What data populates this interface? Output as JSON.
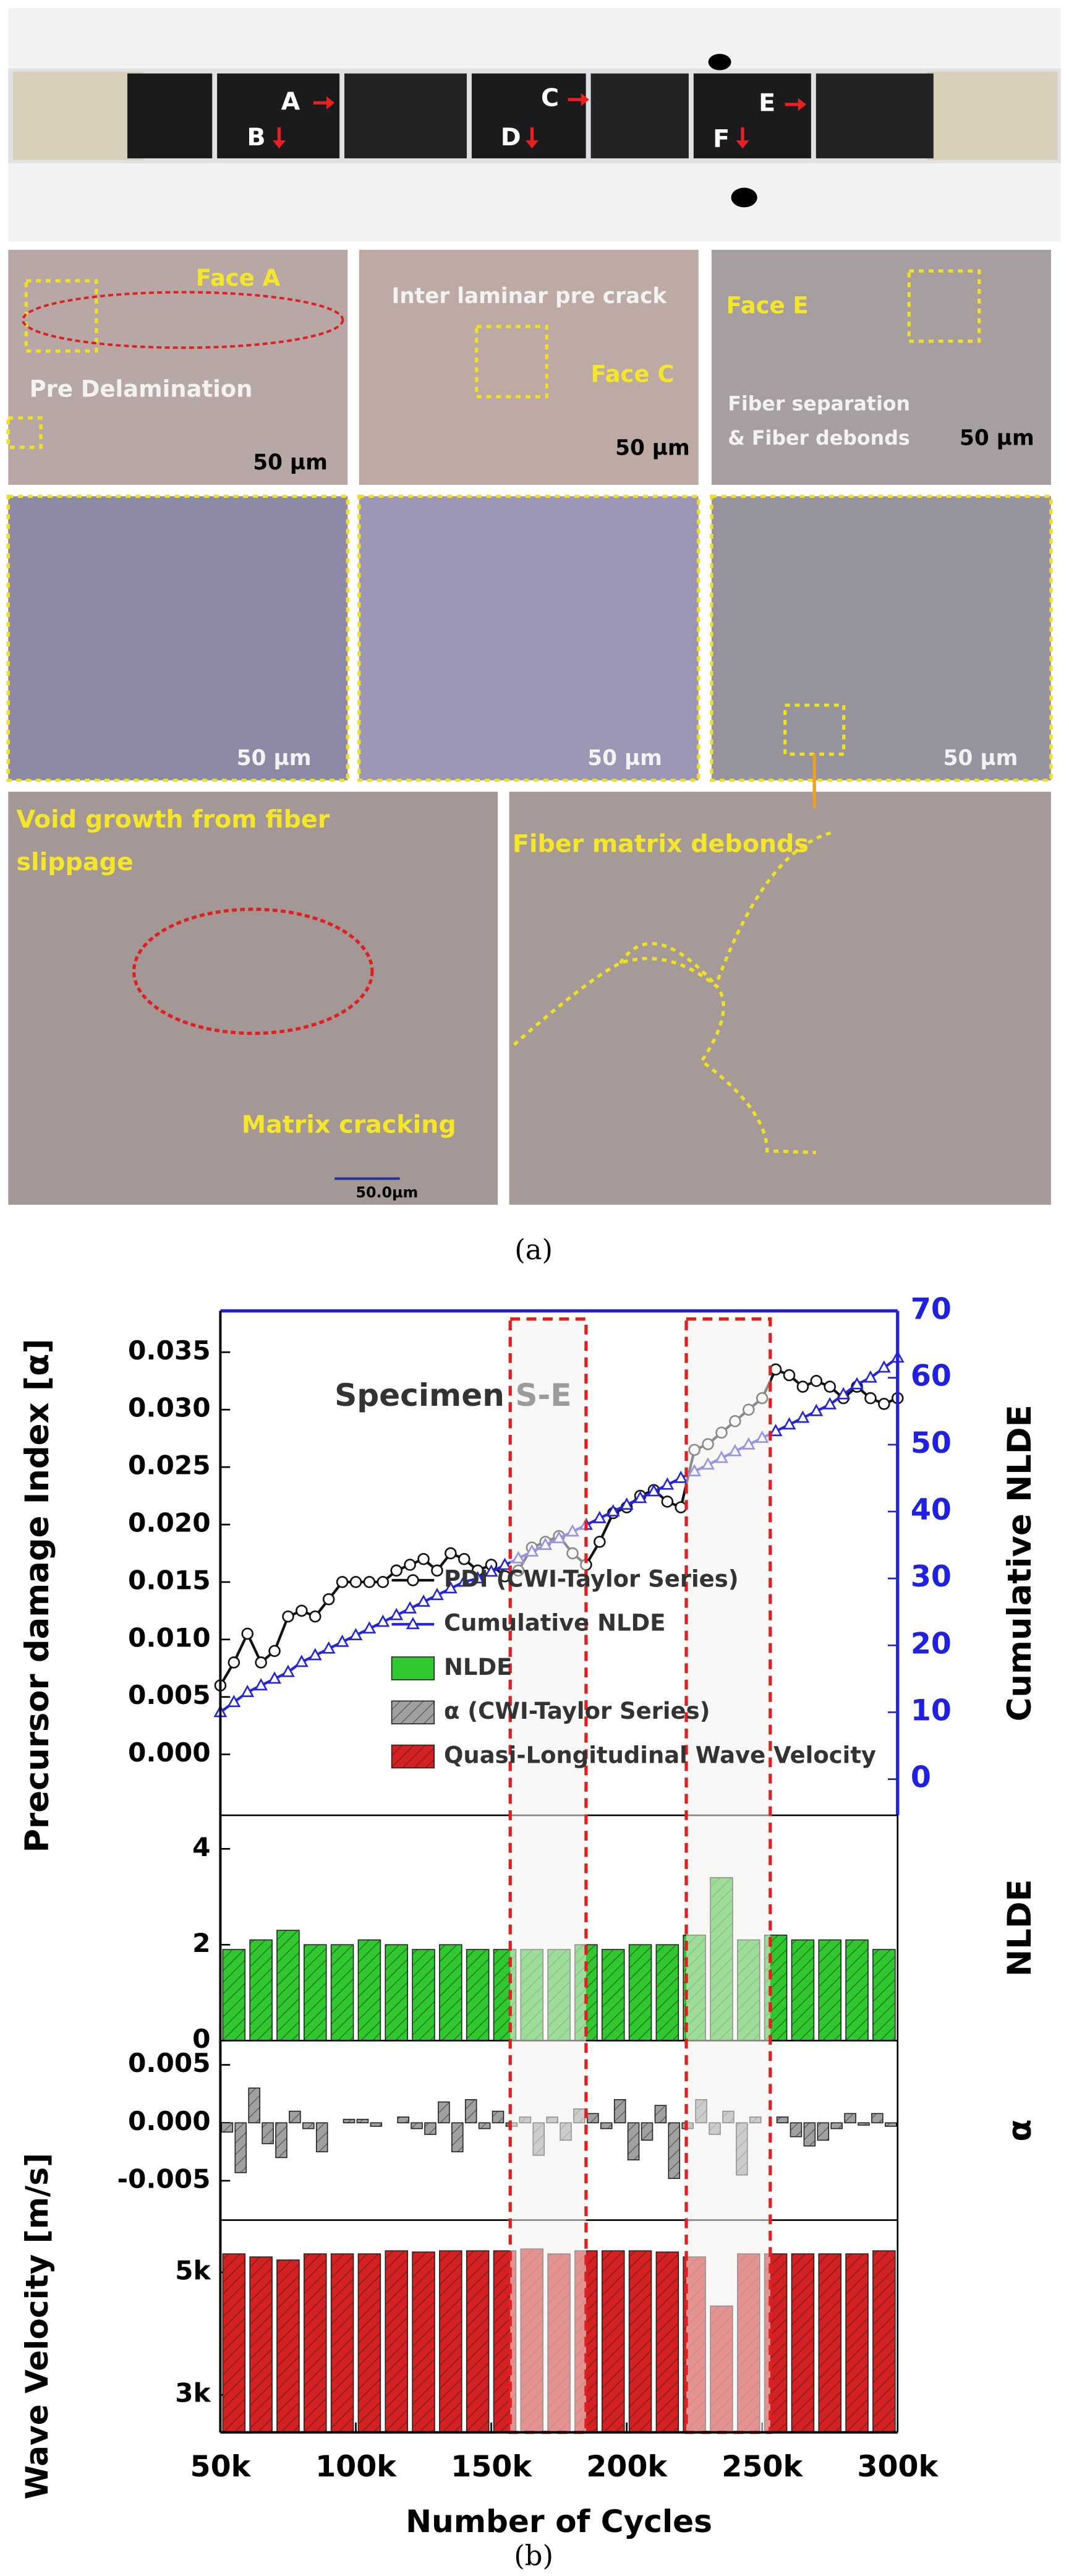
{
  "photos": {
    "specimen_labels": [
      "A",
      "B",
      "C",
      "D",
      "E",
      "F"
    ],
    "panels": [
      {
        "texts": [
          "Face A",
          "Pre Delamination",
          "50 µm"
        ]
      },
      {
        "texts": [
          "Inter laminar pre crack",
          "Face C",
          "50 µm"
        ]
      },
      {
        "texts": [
          "Face E",
          "Fiber separation",
          "& Fiber debonds",
          "50 µm"
        ]
      },
      {
        "texts": [
          "50 µm"
        ]
      },
      {
        "texts": [
          "50 µm"
        ]
      },
      {
        "texts": [
          "50 µm"
        ]
      },
      {
        "texts": [
          "Void growth from fiber",
          "slippage",
          "Matrix cracking",
          "50.0µm"
        ]
      },
      {
        "texts": [
          "Fiber matrix debonds"
        ]
      }
    ],
    "caption": "(a)"
  },
  "figure_caption": "(b)",
  "highlight_ranges": [
    [
      157000,
      185000
    ],
    [
      222000,
      253000
    ]
  ],
  "chart_data": [
    {
      "type": "line",
      "annotation": "Specimen S-E",
      "ylabel": "Precursor damage Index [α]",
      "y2label": "Cumulative NLDE",
      "xlim": [
        50000,
        300000
      ],
      "ylim": [
        -0.0053,
        0.0386
      ],
      "yticks": [
        {
          "value": 0,
          "label": "0.000"
        },
        0.005,
        {
          "value": 0.01,
          "label": "0.010"
        },
        0.015,
        {
          "value": 0.02,
          "label": "0.020"
        },
        0.025,
        {
          "value": 0.03,
          "label": "0.030"
        },
        0.035
      ],
      "y2lim": [
        -5.4,
        70
      ],
      "y2ticks": [
        0,
        10,
        20,
        30,
        40,
        50,
        60,
        70
      ],
      "series": [
        {
          "name": "PDI (CWI-Taylor Series)",
          "color": "#111111",
          "marker": "circle",
          "x": [
            50000,
            55000,
            60000,
            65000,
            70000,
            75000,
            80000,
            85000,
            90000,
            95000,
            100000,
            105000,
            110000,
            115000,
            120000,
            125000,
            130000,
            135000,
            140000,
            145000,
            150000,
            155000,
            160000,
            165000,
            170000,
            175000,
            180000,
            185000,
            190000,
            195000,
            200000,
            205000,
            210000,
            215000,
            220000,
            225000,
            230000,
            235000,
            240000,
            245000,
            250000,
            255000,
            260000,
            265000,
            270000,
            275000,
            280000,
            285000,
            290000,
            295000,
            300000
          ],
          "values": [
            0.006,
            0.008,
            0.0105,
            0.008,
            0.009,
            0.012,
            0.0125,
            0.012,
            0.0135,
            0.015,
            0.015,
            0.015,
            0.015,
            0.016,
            0.0165,
            0.017,
            0.016,
            0.0175,
            0.017,
            0.016,
            0.0165,
            0.0155,
            0.016,
            0.018,
            0.0185,
            0.019,
            0.0175,
            0.0165,
            0.0185,
            0.021,
            0.0215,
            0.0225,
            0.023,
            0.022,
            0.0215,
            0.0265,
            0.027,
            0.028,
            0.029,
            0.03,
            0.031,
            0.0335,
            0.033,
            0.032,
            0.0325,
            0.032,
            0.031,
            0.032,
            0.031,
            0.0305,
            0.031
          ]
        },
        {
          "name": "Cumulative NLDE",
          "color": "#2424d8",
          "marker": "triangle",
          "axis": "y2",
          "x": [
            50000,
            55000,
            60000,
            65000,
            70000,
            75000,
            80000,
            85000,
            90000,
            95000,
            100000,
            105000,
            110000,
            115000,
            120000,
            125000,
            130000,
            135000,
            140000,
            145000,
            150000,
            155000,
            160000,
            165000,
            170000,
            175000,
            180000,
            185000,
            190000,
            195000,
            200000,
            205000,
            210000,
            215000,
            220000,
            225000,
            230000,
            235000,
            240000,
            245000,
            250000,
            255000,
            260000,
            265000,
            270000,
            275000,
            280000,
            285000,
            290000,
            295000,
            300000
          ],
          "values": [
            10,
            11.5,
            13,
            14,
            15,
            16,
            17.5,
            18.5,
            19.5,
            20.5,
            21.5,
            22.5,
            23.5,
            24.5,
            25.5,
            26.5,
            27.5,
            28.5,
            29.5,
            30,
            31,
            32,
            33,
            34,
            35,
            36,
            37,
            38,
            39,
            40,
            41,
            42,
            43,
            44,
            45,
            46,
            47,
            48,
            49,
            50,
            51,
            52,
            53,
            54,
            55,
            56,
            57.5,
            59,
            60,
            61.5,
            63
          ]
        }
      ]
    },
    {
      "type": "bar",
      "ylabel": "NLDE",
      "xlim": [
        50000,
        300000
      ],
      "ylim": [
        0,
        4.7
      ],
      "yticks": [
        0,
        2,
        4
      ],
      "series": [
        {
          "name": "NLDE",
          "color": "#2fc82f",
          "x": [
            55000,
            65000,
            75000,
            85000,
            95000,
            105000,
            115000,
            125000,
            135000,
            145000,
            155000,
            165000,
            175000,
            185000,
            195000,
            205000,
            215000,
            225000,
            235000,
            245000,
            255000,
            265000,
            275000,
            285000,
            295000
          ],
          "values": [
            1.9,
            2.1,
            2.3,
            2.0,
            2.0,
            2.1,
            2.0,
            1.9,
            2.0,
            1.9,
            1.9,
            1.9,
            1.9,
            2.0,
            1.9,
            2.0,
            2.0,
            2.2,
            3.4,
            2.1,
            2.2,
            2.1,
            2.1,
            2.1,
            1.9
          ]
        }
      ]
    },
    {
      "type": "bar",
      "ylabel": "α",
      "xlim": [
        50000,
        300000
      ],
      "ylim": [
        -0.0084,
        0.0071
      ],
      "yticks": [
        -0.005,
        {
          "value": 0,
          "label": "0.000"
        },
        0.005
      ],
      "series": [
        {
          "name": "α (CWI-Taylor Series)",
          "color": "#a0a0a0",
          "x": [
            52500,
            57500,
            62500,
            67500,
            72500,
            77500,
            82500,
            87500,
            92500,
            97500,
            102500,
            107500,
            112500,
            117500,
            122500,
            127500,
            132500,
            137500,
            142500,
            147500,
            152500,
            157500,
            162500,
            167500,
            172500,
            177500,
            182500,
            187500,
            192500,
            197500,
            202500,
            207500,
            212500,
            217500,
            222500,
            227500,
            232500,
            237500,
            242500,
            247500,
            252500,
            257500,
            262500,
            267500,
            272500,
            277500,
            282500,
            287500,
            292500,
            297500
          ],
          "values": [
            -0.0008,
            -0.0043,
            0.003,
            -0.0018,
            -0.003,
            0.001,
            -0.0005,
            -0.0025,
            0,
            0.0003,
            0.0003,
            -0.0003,
            0,
            0.0005,
            -0.0005,
            -0.001,
            0.0018,
            -0.0025,
            0.002,
            -0.0005,
            0.001,
            -0.0003,
            0.0005,
            -0.0028,
            0.0005,
            -0.0015,
            0.0012,
            0.0008,
            -0.0005,
            0.002,
            -0.0032,
            -0.0015,
            0.0015,
            -0.0048,
            -0.0005,
            0.002,
            -0.001,
            0.001,
            -0.0045,
            0.0005,
            0,
            0.0005,
            -0.0012,
            -0.002,
            -0.0015,
            -0.0005,
            0.0008,
            -0.0002,
            0.0008,
            -0.0003
          ]
        }
      ]
    },
    {
      "type": "bar",
      "ylabel": "Wave Velocity [m/s]",
      "xlabel": "Number of Cycles",
      "xlim": [
        50000,
        300000
      ],
      "xticks": [
        {
          "value": 50000,
          "label": "50k"
        },
        {
          "value": 100000,
          "label": "100k"
        },
        {
          "value": 150000,
          "label": "150k"
        },
        {
          "value": 200000,
          "label": "200k"
        },
        {
          "value": 250000,
          "label": "250k"
        },
        {
          "value": 300000,
          "label": "300k"
        }
      ],
      "ylim": [
        2390,
        5850
      ],
      "yticks": [
        {
          "value": 3000,
          "label": "3k"
        },
        {
          "value": 5000,
          "label": "5k"
        }
      ],
      "series": [
        {
          "name": "Quasi-Longitudinal Wave Velocity",
          "color": "#d42020",
          "x": [
            55000,
            65000,
            75000,
            85000,
            95000,
            105000,
            115000,
            125000,
            135000,
            145000,
            155000,
            165000,
            175000,
            185000,
            195000,
            205000,
            215000,
            225000,
            235000,
            245000,
            255000,
            265000,
            275000,
            285000,
            295000
          ],
          "values": [
            5300,
            5250,
            5200,
            5300,
            5300,
            5300,
            5350,
            5330,
            5350,
            5350,
            5350,
            5380,
            5300,
            5350,
            5350,
            5350,
            5330,
            5250,
            4450,
            5300,
            5300,
            5300,
            5300,
            5300,
            5350
          ]
        }
      ]
    }
  ]
}
